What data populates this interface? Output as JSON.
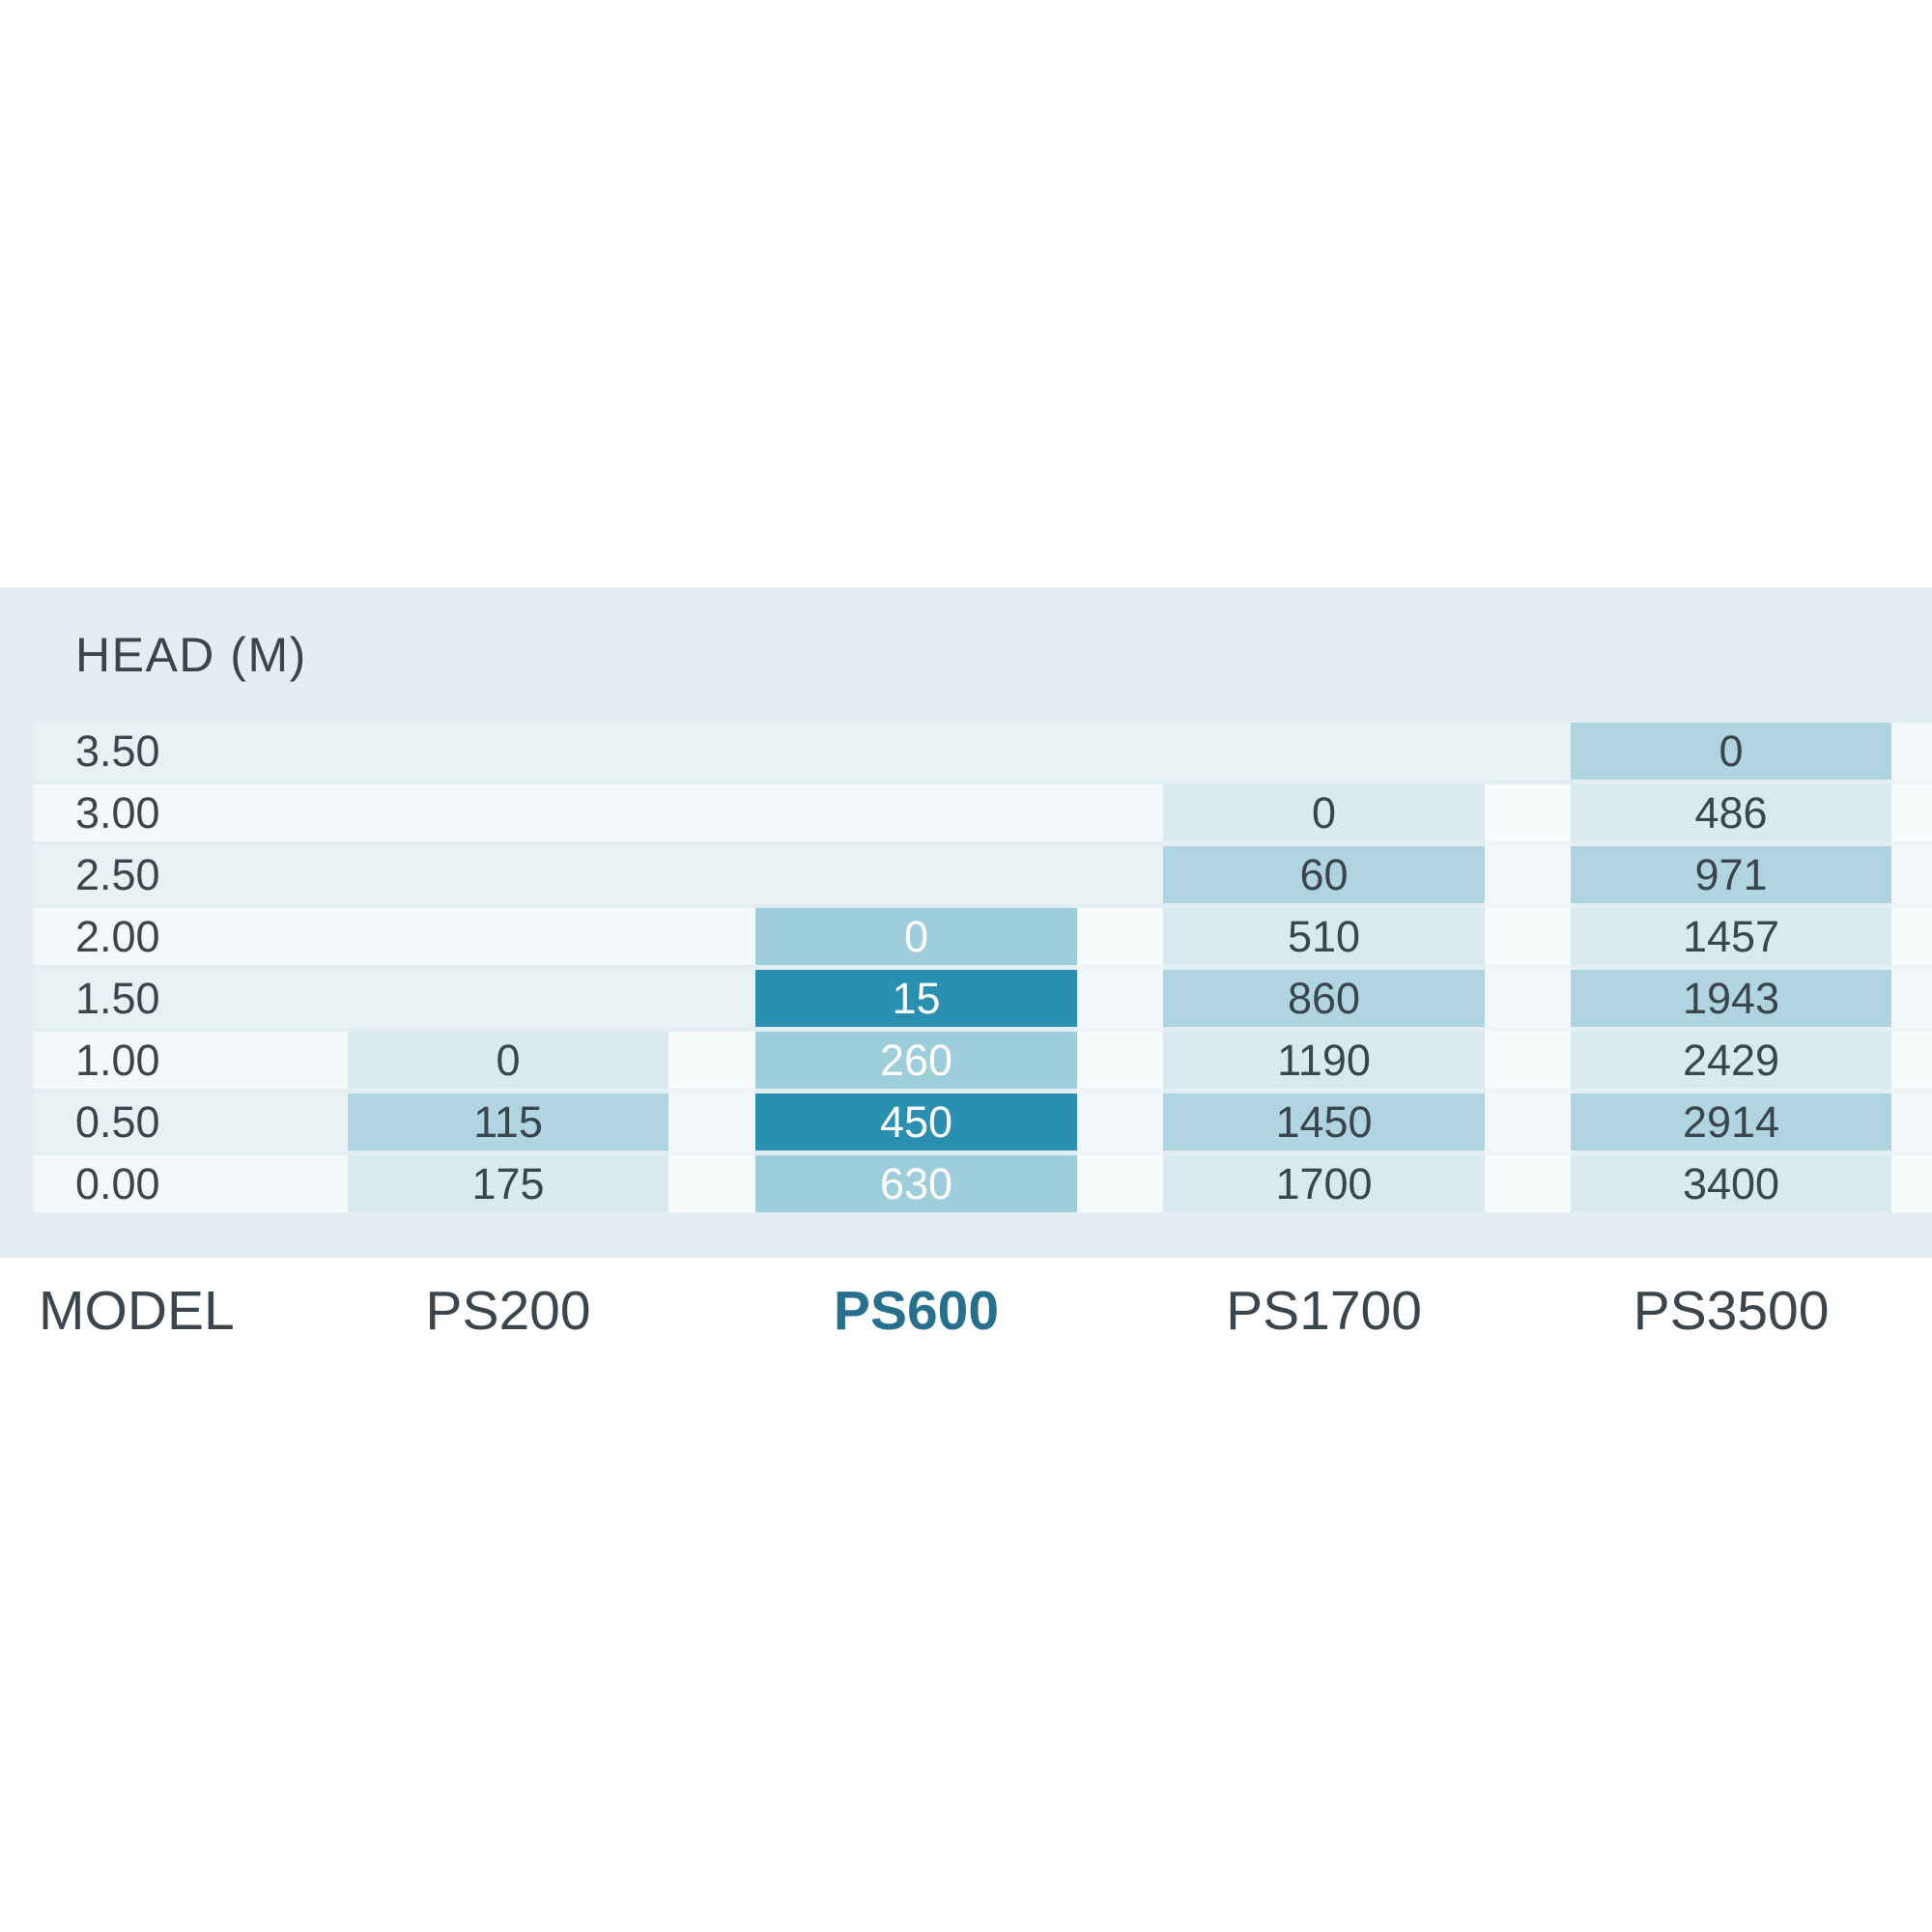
{
  "title": "HEAD (M)",
  "model_row_label": "MODEL",
  "colors": {
    "panel_bg": "#e2eef1",
    "row_band_strong": "#e8f1f4",
    "row_band_soft": "#f3f9fa",
    "cell_mid_blue": "#b0d4e0",
    "cell_light_blue": "#d8e9ef",
    "highlight_cell_dark": "#2a90b2",
    "highlight_cell_mid": "#9ecddc",
    "dark_text": "#3a454c",
    "highlight_label_teal": "#26708e",
    "cell_text_on_highlight": "#ffffff"
  },
  "chart_data": {
    "type": "heatmap",
    "title": "HEAD (M)",
    "row_axis_label": "HEAD (M)",
    "column_axis_label": "MODEL",
    "rows": [
      "3.50",
      "3.00",
      "2.50",
      "2.00",
      "1.50",
      "1.00",
      "0.50",
      "0.00"
    ],
    "columns": [
      "PS200",
      "PS600",
      "PS1700",
      "PS3500"
    ],
    "highlighted_column": "PS600",
    "legend_position": "none",
    "grid": "off",
    "cells": [
      {
        "model": "PS200",
        "values": [
          {
            "head": "1.00",
            "flow": 0
          },
          {
            "head": "0.50",
            "flow": 115
          },
          {
            "head": "0.00",
            "flow": 175
          }
        ]
      },
      {
        "model": "PS600",
        "values": [
          {
            "head": "2.00",
            "flow": 0
          },
          {
            "head": "1.50",
            "flow": 15
          },
          {
            "head": "1.00",
            "flow": 260
          },
          {
            "head": "0.50",
            "flow": 450
          },
          {
            "head": "0.00",
            "flow": 630
          }
        ]
      },
      {
        "model": "PS1700",
        "values": [
          {
            "head": "3.00",
            "flow": 0
          },
          {
            "head": "2.50",
            "flow": 60
          },
          {
            "head": "2.00",
            "flow": 510
          },
          {
            "head": "1.50",
            "flow": 860
          },
          {
            "head": "1.00",
            "flow": 1190
          },
          {
            "head": "0.50",
            "flow": 1450
          },
          {
            "head": "0.00",
            "flow": 1700
          }
        ]
      },
      {
        "model": "PS3500",
        "values": [
          {
            "head": "3.50",
            "flow": 0
          },
          {
            "head": "3.00",
            "flow": 486
          },
          {
            "head": "2.50",
            "flow": 971
          },
          {
            "head": "2.00",
            "flow": 1457
          },
          {
            "head": "1.50",
            "flow": 1943
          },
          {
            "head": "1.00",
            "flow": 2429
          },
          {
            "head": "0.50",
            "flow": 2914
          },
          {
            "head": "0.00",
            "flow": 3400
          }
        ]
      }
    ]
  }
}
